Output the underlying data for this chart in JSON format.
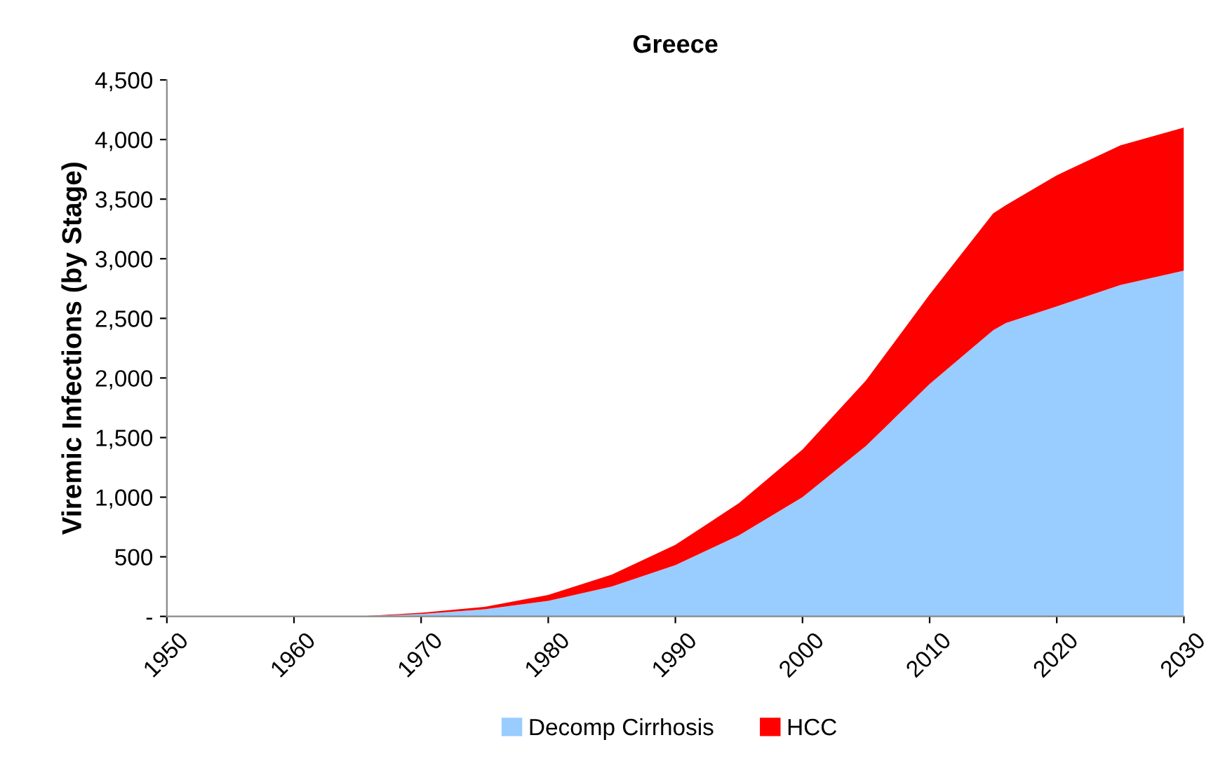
{
  "chart_data": {
    "type": "area",
    "stacked": true,
    "title": "Greece",
    "ylabel": "Viremic Infections (by Stage)",
    "x": [
      1950,
      1955,
      1960,
      1965,
      1970,
      1975,
      1980,
      1985,
      1990,
      1995,
      2000,
      2005,
      2010,
      2015,
      2016,
      2020,
      2025,
      2030
    ],
    "series": [
      {
        "name": "Decomp Cirrhosis",
        "color": "#99ccff",
        "values": [
          0,
          0,
          0,
          0,
          20,
          60,
          130,
          250,
          430,
          680,
          1000,
          1430,
          1950,
          2400,
          2460,
          2600,
          2780,
          2900
        ]
      },
      {
        "name": "HCC",
        "color": "#ff0000",
        "values": [
          0,
          0,
          0,
          0,
          10,
          20,
          50,
          100,
          170,
          270,
          400,
          550,
          750,
          980,
          990,
          1100,
          1170,
          1200
        ]
      }
    ],
    "xlim": [
      1950,
      2030
    ],
    "xticks": [
      1950,
      1960,
      1970,
      1980,
      1990,
      2000,
      2010,
      2020,
      2030
    ],
    "ylim": [
      0,
      4500
    ],
    "yticks": [
      {
        "value": 0,
        "label": "-"
      },
      {
        "value": 500,
        "label": "500"
      },
      {
        "value": 1000,
        "label": "1,000"
      },
      {
        "value": 1500,
        "label": "1,500"
      },
      {
        "value": 2000,
        "label": "2,000"
      },
      {
        "value": 2500,
        "label": "2,500"
      },
      {
        "value": 3000,
        "label": "3,000"
      },
      {
        "value": 3500,
        "label": "3,500"
      },
      {
        "value": 4000,
        "label": "4,000"
      },
      {
        "value": 4500,
        "label": "4,500"
      }
    ],
    "grid": false,
    "legend": "bottom"
  }
}
